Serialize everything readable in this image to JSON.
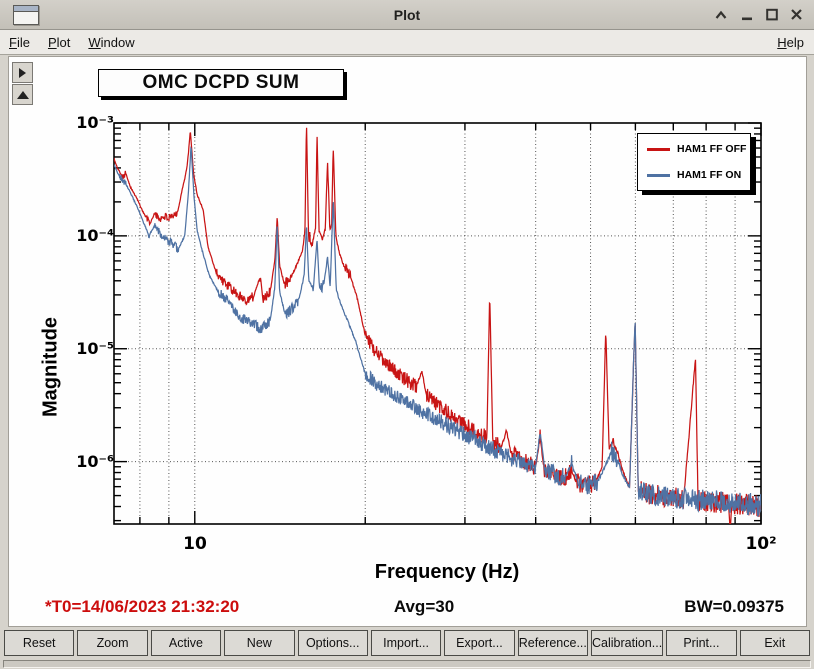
{
  "window": {
    "title": "Plot"
  },
  "menu": {
    "items": [
      "File",
      "Plot",
      "Window"
    ],
    "help": "Help"
  },
  "footer": {
    "t0": "*T0=14/06/2023 21:32:20",
    "avg": "Avg=30",
    "bw": "BW=0.09375"
  },
  "buttons": [
    "Reset",
    "Zoom",
    "Active",
    "New",
    "Options...",
    "Import...",
    "Export...",
    "Reference...",
    "Calibration...",
    "Print...",
    "Exit"
  ],
  "chart_data": {
    "type": "line",
    "title": "OMC DCPD SUM",
    "xlabel": "Frequency (Hz)",
    "ylabel": "Magnitude",
    "xscale": "log",
    "yscale": "log",
    "xlim": [
      7.2,
      100
    ],
    "ylim": [
      2.8e-07,
      0.001
    ],
    "grid": true,
    "legend_position": "top-right",
    "x_tick_labels": [
      "10",
      "10²"
    ],
    "y_tick_labels": [
      "10⁻³",
      "10⁻⁴",
      "10⁻⁵",
      "10⁻⁶"
    ],
    "x_gridlines": [
      8,
      9,
      10,
      20,
      30,
      40,
      50,
      60,
      70,
      80,
      90
    ],
    "y_gridlines": [
      0.0001,
      1e-05,
      1e-06
    ],
    "x_ticks_major": [
      10,
      100
    ],
    "x_ticks_minor": [
      8,
      9,
      20,
      30,
      40,
      50,
      60,
      70,
      80,
      90
    ],
    "series": [
      {
        "name": "HAM1 FF OFF",
        "color": "#c81414",
        "points": [
          [
            7.2,
            0.00048
          ],
          [
            7.3,
            0.0004
          ],
          [
            7.45,
            0.000335
          ],
          [
            7.55,
            0.00036
          ],
          [
            7.7,
            0.00027
          ],
          [
            7.9,
            0.000215
          ],
          [
            8.05,
            0.000175
          ],
          [
            8.2,
            0.000145
          ],
          [
            8.35,
            0.00013
          ],
          [
            8.5,
            0.00016
          ],
          [
            8.65,
            0.00014
          ],
          [
            8.85,
            0.00015
          ],
          [
            9.0,
            0.000142
          ],
          [
            9.15,
            0.000145
          ],
          [
            9.35,
            0.00017
          ],
          [
            9.5,
            0.00026
          ],
          [
            9.6,
            0.00032
          ],
          [
            9.7,
            0.00042
          ],
          [
            9.82,
            0.00085
          ],
          [
            9.95,
            0.00036
          ],
          [
            10.1,
            0.00023
          ],
          [
            10.35,
            0.00017
          ],
          [
            10.55,
            8e-05
          ],
          [
            10.9,
            4.8e-05
          ],
          [
            11.3,
            3.8e-05
          ],
          [
            11.9,
            3e-05
          ],
          [
            12.4,
            2.7e-05
          ],
          [
            12.7,
            2.9e-05
          ],
          [
            13.05,
            4.4e-05
          ],
          [
            13.2,
            2.7e-05
          ],
          [
            13.6,
            3.3e-05
          ],
          [
            13.85,
            6e-05
          ],
          [
            13.98,
            0.00015
          ],
          [
            14.12,
            5.5e-05
          ],
          [
            14.4,
            3.7e-05
          ],
          [
            14.8,
            4.3e-05
          ],
          [
            15.15,
            5.6e-05
          ],
          [
            15.5,
            7.5e-05
          ],
          [
            15.65,
            0.00011
          ],
          [
            15.75,
            0.00105
          ],
          [
            15.88,
            0.0001
          ],
          [
            16.15,
            8.8e-05
          ],
          [
            16.35,
            0.00012
          ],
          [
            16.44,
            0.00082
          ],
          [
            16.58,
            0.00011
          ],
          [
            16.8,
            9.5e-05
          ],
          [
            17.0,
            0.000115
          ],
          [
            17.16,
            0.00046
          ],
          [
            17.32,
            0.00011
          ],
          [
            17.45,
            0.00013
          ],
          [
            17.56,
            0.00065
          ],
          [
            17.75,
            0.0001
          ],
          [
            18.0,
            7e-05
          ],
          [
            18.4,
            5.2e-05
          ],
          [
            18.9,
            4.2e-05
          ],
          [
            19.4,
            2.7e-05
          ],
          [
            20.0,
            1.3e-05
          ],
          [
            20.7,
            1e-05
          ],
          [
            21.5,
            8e-06
          ],
          [
            22.5,
            6.4e-06
          ],
          [
            23.5,
            5.4e-06
          ],
          [
            24.6,
            4.6e-06
          ],
          [
            25.2,
            6.3e-06
          ],
          [
            25.6,
            4e-06
          ],
          [
            26.6,
            3.3e-06
          ],
          [
            28.0,
            2.7e-06
          ],
          [
            29.6,
            2.2e-06
          ],
          [
            31.2,
            1.85e-06
          ],
          [
            32.8,
            1.62e-06
          ],
          [
            33.18,
            3.1e-05
          ],
          [
            33.6,
            1.5e-06
          ],
          [
            34.8,
            1.32e-06
          ],
          [
            35.5,
            1.9e-06
          ],
          [
            36.2,
            1.18e-06
          ],
          [
            38.0,
            1.02e-06
          ],
          [
            40.0,
            9e-07
          ],
          [
            40.72,
            1.65e-06
          ],
          [
            41.4,
            8.5e-07
          ],
          [
            43.0,
            7.8e-07
          ],
          [
            45.0,
            7.1e-07
          ],
          [
            46.2,
            8.6e-07
          ],
          [
            47.2,
            6.6e-07
          ],
          [
            49.0,
            6.2e-07
          ],
          [
            51.0,
            6.5e-07
          ],
          [
            52.4,
            8.8e-07
          ],
          [
            53.2,
            1.5e-05
          ],
          [
            53.9,
            1.3e-06
          ],
          [
            54.8,
            1.5e-06
          ],
          [
            55.8,
            1.2e-06
          ],
          [
            57.0,
            8.2e-07
          ],
          [
            58.6,
            6e-07
          ],
          [
            59.92,
            1.8e-05
          ],
          [
            60.7,
            5.6e-07
          ],
          [
            63.0,
            5.2e-07
          ],
          [
            66.0,
            5e-07
          ],
          [
            70.0,
            4.8e-07
          ],
          [
            73.0,
            4.6e-07
          ],
          [
            76.6,
            8.2e-06
          ],
          [
            77.4,
            4.5e-07
          ],
          [
            80.0,
            4.4e-07
          ],
          [
            84.0,
            4.35e-07
          ],
          [
            87.6,
            4.3e-07
          ],
          [
            88.2,
            2.6e-07
          ],
          [
            88.9,
            4.2e-07
          ],
          [
            93.0,
            4.1e-07
          ],
          [
            100,
            4e-07
          ]
        ]
      },
      {
        "name": "HAM1 FF ON",
        "color": "#4f72a3",
        "points": [
          [
            7.2,
            0.00043
          ],
          [
            7.35,
            0.00034
          ],
          [
            7.55,
            0.00029
          ],
          [
            7.75,
            0.000225
          ],
          [
            7.95,
            0.00017
          ],
          [
            8.15,
            0.000125
          ],
          [
            8.3,
            0.0001
          ],
          [
            8.5,
            0.000125
          ],
          [
            8.7,
            0.000105
          ],
          [
            8.9,
            9.2e-05
          ],
          [
            9.1,
            8.6e-05
          ],
          [
            9.35,
            7.6e-05
          ],
          [
            9.6,
            0.0001
          ],
          [
            9.73,
            0.00022
          ],
          [
            9.85,
            0.00063
          ],
          [
            9.97,
            0.00022
          ],
          [
            10.1,
            0.00011
          ],
          [
            10.3,
            7.5e-05
          ],
          [
            10.6,
            4.5e-05
          ],
          [
            11.0,
            3.2e-05
          ],
          [
            11.5,
            2.6e-05
          ],
          [
            12.0,
            1.9e-05
          ],
          [
            12.6,
            1.7e-05
          ],
          [
            13.1,
            1.5e-05
          ],
          [
            13.6,
            1.8e-05
          ],
          [
            13.85,
            3.5e-05
          ],
          [
            13.98,
            0.00013
          ],
          [
            14.12,
            3.2e-05
          ],
          [
            14.45,
            2e-05
          ],
          [
            14.9,
            2.3e-05
          ],
          [
            15.3,
            2.8e-05
          ],
          [
            15.6,
            4.5e-05
          ],
          [
            15.75,
            0.000125
          ],
          [
            15.9,
            4e-05
          ],
          [
            16.2,
            3.4e-05
          ],
          [
            16.44,
            9.5e-05
          ],
          [
            16.6,
            3.5e-05
          ],
          [
            16.9,
            3.7e-05
          ],
          [
            17.16,
            6.5e-05
          ],
          [
            17.34,
            3.5e-05
          ],
          [
            17.56,
            0.00021
          ],
          [
            17.78,
            3.3e-05
          ],
          [
            18.1,
            2.5e-05
          ],
          [
            18.6,
            1.8e-05
          ],
          [
            19.2,
            1.2e-05
          ],
          [
            20.0,
            6e-06
          ],
          [
            21.0,
            4.8e-06
          ],
          [
            22.0,
            4.2e-06
          ],
          [
            23.5,
            3.4e-06
          ],
          [
            25.0,
            2.8e-06
          ],
          [
            27.0,
            2.3e-06
          ],
          [
            29.0,
            1.9e-06
          ],
          [
            31.0,
            1.6e-06
          ],
          [
            33.0,
            1.35e-06
          ],
          [
            35.0,
            1.15e-06
          ],
          [
            37.5,
            1e-06
          ],
          [
            40.0,
            9e-07
          ],
          [
            40.72,
            1.9e-06
          ],
          [
            41.5,
            8.5e-07
          ],
          [
            43.0,
            7.8e-07
          ],
          [
            45.0,
            7.2e-07
          ],
          [
            46.3,
            9.5e-07
          ],
          [
            47.5,
            6.6e-07
          ],
          [
            49.5,
            6.2e-07
          ],
          [
            51.5,
            6.6e-07
          ],
          [
            53.0,
            9e-07
          ],
          [
            54.5,
            1.25e-06
          ],
          [
            55.8,
            1.05e-06
          ],
          [
            57.0,
            7.6e-07
          ],
          [
            58.6,
            5.8e-07
          ],
          [
            59.92,
            1.9e-05
          ],
          [
            60.7,
            5.5e-07
          ],
          [
            63.0,
            5.2e-07
          ],
          [
            66.0,
            5e-07
          ],
          [
            70.0,
            4.8e-07
          ],
          [
            75.0,
            4.6e-07
          ],
          [
            80.0,
            4.5e-07
          ],
          [
            85.0,
            4.4e-07
          ],
          [
            90.0,
            4.3e-07
          ],
          [
            95.0,
            4.2e-07
          ],
          [
            100,
            4.1e-07
          ]
        ]
      }
    ]
  }
}
